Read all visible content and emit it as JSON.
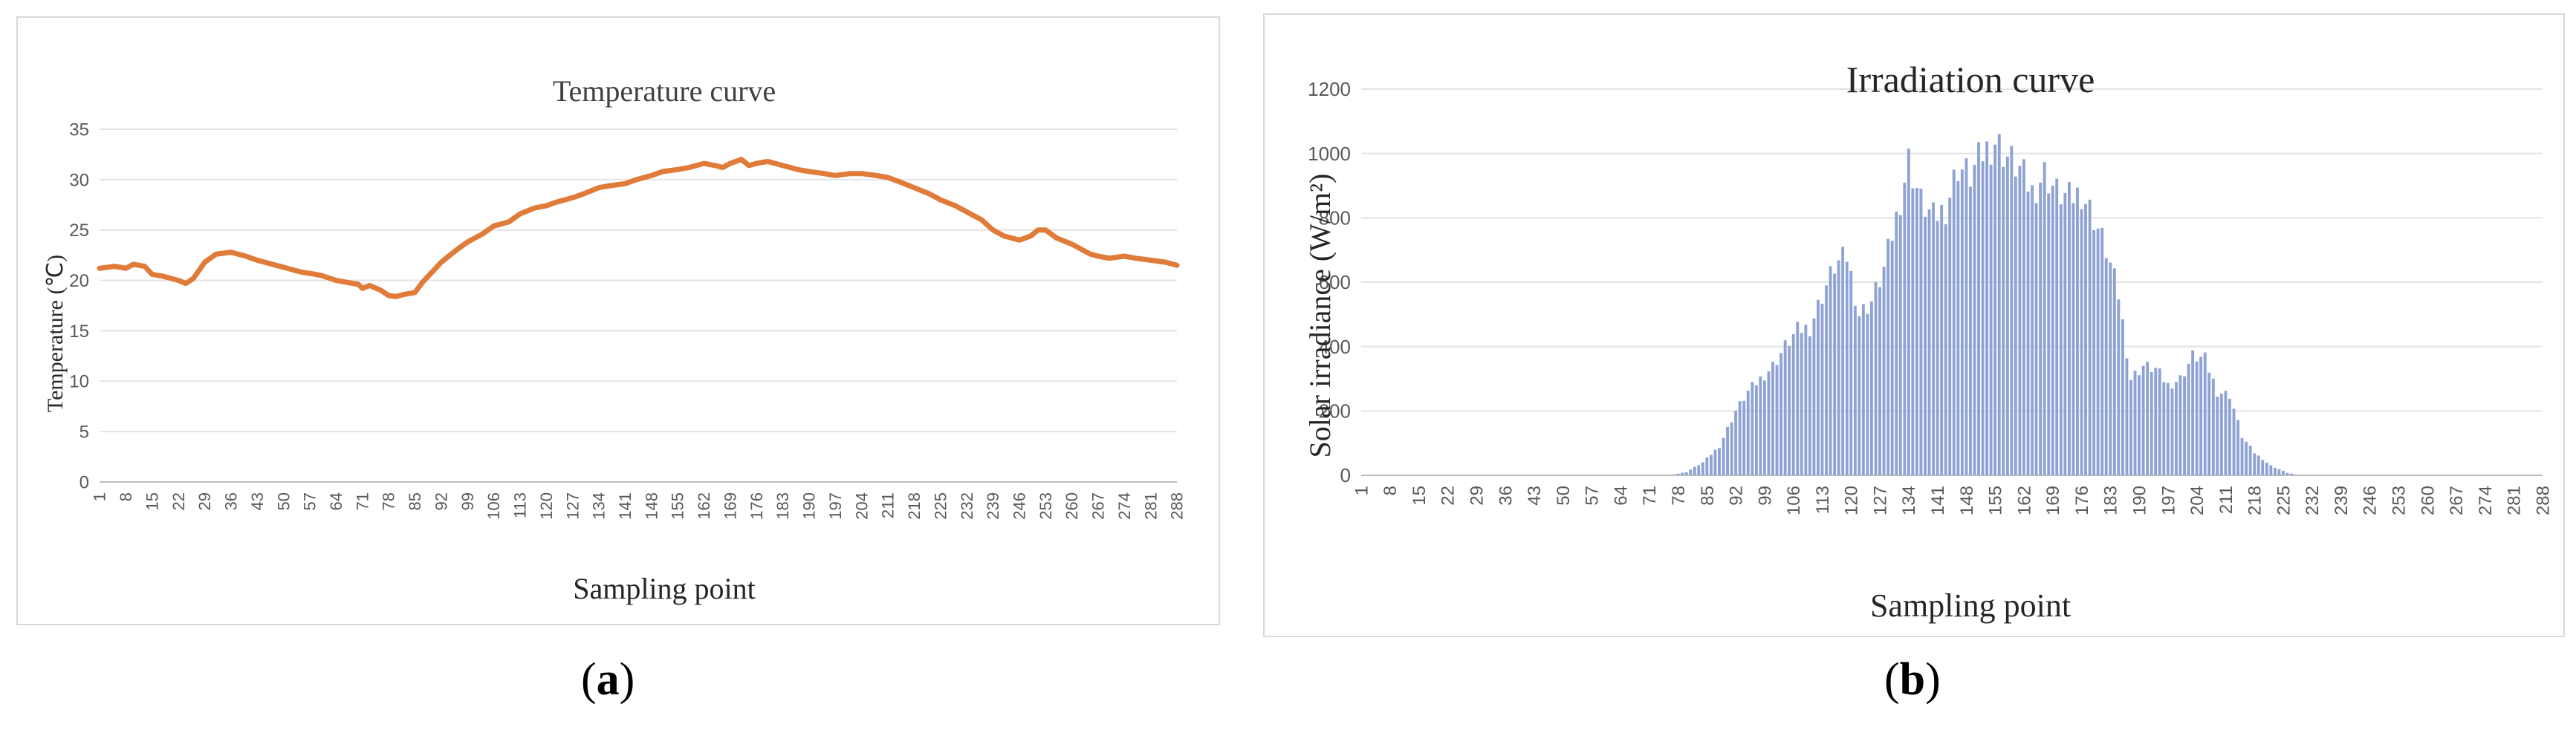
{
  "chart_data": [
    {
      "type": "line",
      "title": "Temperature curve",
      "xlabel": "Sampling point",
      "ylabel": "Temperature (℃)",
      "ylim": [
        0,
        35
      ],
      "yticks": [
        0,
        5,
        10,
        15,
        20,
        25,
        30,
        35
      ],
      "xticks": [
        1,
        8,
        15,
        22,
        29,
        36,
        43,
        50,
        57,
        64,
        71,
        78,
        85,
        92,
        99,
        106,
        113,
        120,
        127,
        134,
        141,
        148,
        155,
        162,
        169,
        176,
        183,
        190,
        197,
        204,
        211,
        218,
        225,
        232,
        239,
        246,
        253,
        260,
        267,
        274,
        281,
        288
      ],
      "xrange": [
        1,
        288
      ],
      "grid": true,
      "color": "#e07b39",
      "series": [
        {
          "x": [
            1,
            5,
            8,
            10,
            13,
            15,
            18,
            22,
            24,
            26,
            29,
            32,
            36,
            40,
            43,
            47,
            50,
            55,
            57,
            60,
            64,
            67,
            70,
            71,
            73,
            76,
            78,
            80,
            82,
            85,
            87,
            90,
            92,
            96,
            99,
            103,
            106,
            110,
            113,
            117,
            120,
            123,
            127,
            130,
            134,
            137,
            141,
            144,
            148,
            151,
            155,
            158,
            162,
            165,
            167,
            169,
            172,
            174,
            176,
            179,
            183,
            187,
            190,
            194,
            197,
            201,
            204,
            208,
            211,
            214,
            218,
            222,
            225,
            229,
            232,
            236,
            239,
            242,
            246,
            249,
            251,
            253,
            256,
            260,
            263,
            265,
            267,
            270,
            274,
            277,
            281,
            285,
            288
          ],
          "y": [
            21.2,
            21.4,
            21.2,
            21.6,
            21.4,
            20.6,
            20.4,
            20.0,
            19.7,
            20.2,
            21.8,
            22.6,
            22.8,
            22.4,
            22.0,
            21.6,
            21.3,
            20.8,
            20.7,
            20.5,
            20.0,
            19.8,
            19.6,
            19.2,
            19.5,
            19.0,
            18.5,
            18.4,
            18.6,
            18.8,
            19.8,
            21.0,
            21.8,
            23.0,
            23.8,
            24.6,
            25.4,
            25.8,
            26.6,
            27.2,
            27.4,
            27.8,
            28.2,
            28.6,
            29.2,
            29.4,
            29.6,
            30.0,
            30.4,
            30.8,
            31.0,
            31.2,
            31.6,
            31.4,
            31.2,
            31.6,
            32.0,
            31.4,
            31.6,
            31.8,
            31.4,
            31.0,
            30.8,
            30.6,
            30.4,
            30.6,
            30.6,
            30.4,
            30.2,
            29.8,
            29.2,
            28.6,
            28.0,
            27.4,
            26.8,
            26.0,
            25.0,
            24.4,
            24.0,
            24.4,
            25.0,
            25.0,
            24.2,
            23.6,
            23.0,
            22.6,
            22.4,
            22.2,
            22.4,
            22.2,
            22.0,
            21.8,
            21.5
          ]
        }
      ]
    },
    {
      "type": "bar",
      "title": "Irradiation curve",
      "xlabel": "Sampling point",
      "ylabel": "Solar irradiance (W/m²)",
      "ylim": [
        0,
        1200
      ],
      "yticks": [
        0,
        200,
        400,
        600,
        800,
        1000,
        1200
      ],
      "xticks": [
        1,
        8,
        15,
        22,
        29,
        36,
        43,
        50,
        57,
        64,
        71,
        78,
        85,
        92,
        99,
        106,
        113,
        120,
        127,
        134,
        141,
        148,
        155,
        162,
        169,
        176,
        183,
        190,
        197,
        204,
        211,
        218,
        225,
        232,
        239,
        246,
        253,
        260,
        267,
        274,
        281,
        288
      ],
      "xrange": [
        1,
        288
      ],
      "grid": true,
      "color": "#8ea3d4",
      "envelope": {
        "x": [
          76,
          80,
          84,
          88,
          92,
          95,
          98,
          101,
          104,
          107,
          110,
          113,
          116,
          119,
          122,
          125,
          128,
          131,
          134,
          137,
          140,
          143,
          146,
          149,
          152,
          155,
          158,
          161,
          164,
          167,
          170,
          173,
          176,
          179,
          182,
          185,
          188,
          191,
          194,
          197,
          200,
          203,
          206,
          209,
          212,
          215,
          218,
          222,
          226,
          229
        ],
        "y": [
          0,
          10,
          40,
          90,
          200,
          260,
          300,
          340,
          400,
          450,
          460,
          560,
          650,
          680,
          500,
          540,
          640,
          800,
          980,
          850,
          800,
          830,
          960,
          930,
          1000,
          1040,
          990,
          950,
          880,
          940,
          880,
          860,
          880,
          800,
          700,
          560,
          300,
          340,
          330,
          280,
          300,
          370,
          360,
          260,
          250,
          120,
          70,
          30,
          8,
          0
        ]
      }
    }
  ],
  "captions": {
    "a": "a",
    "b": "b"
  }
}
